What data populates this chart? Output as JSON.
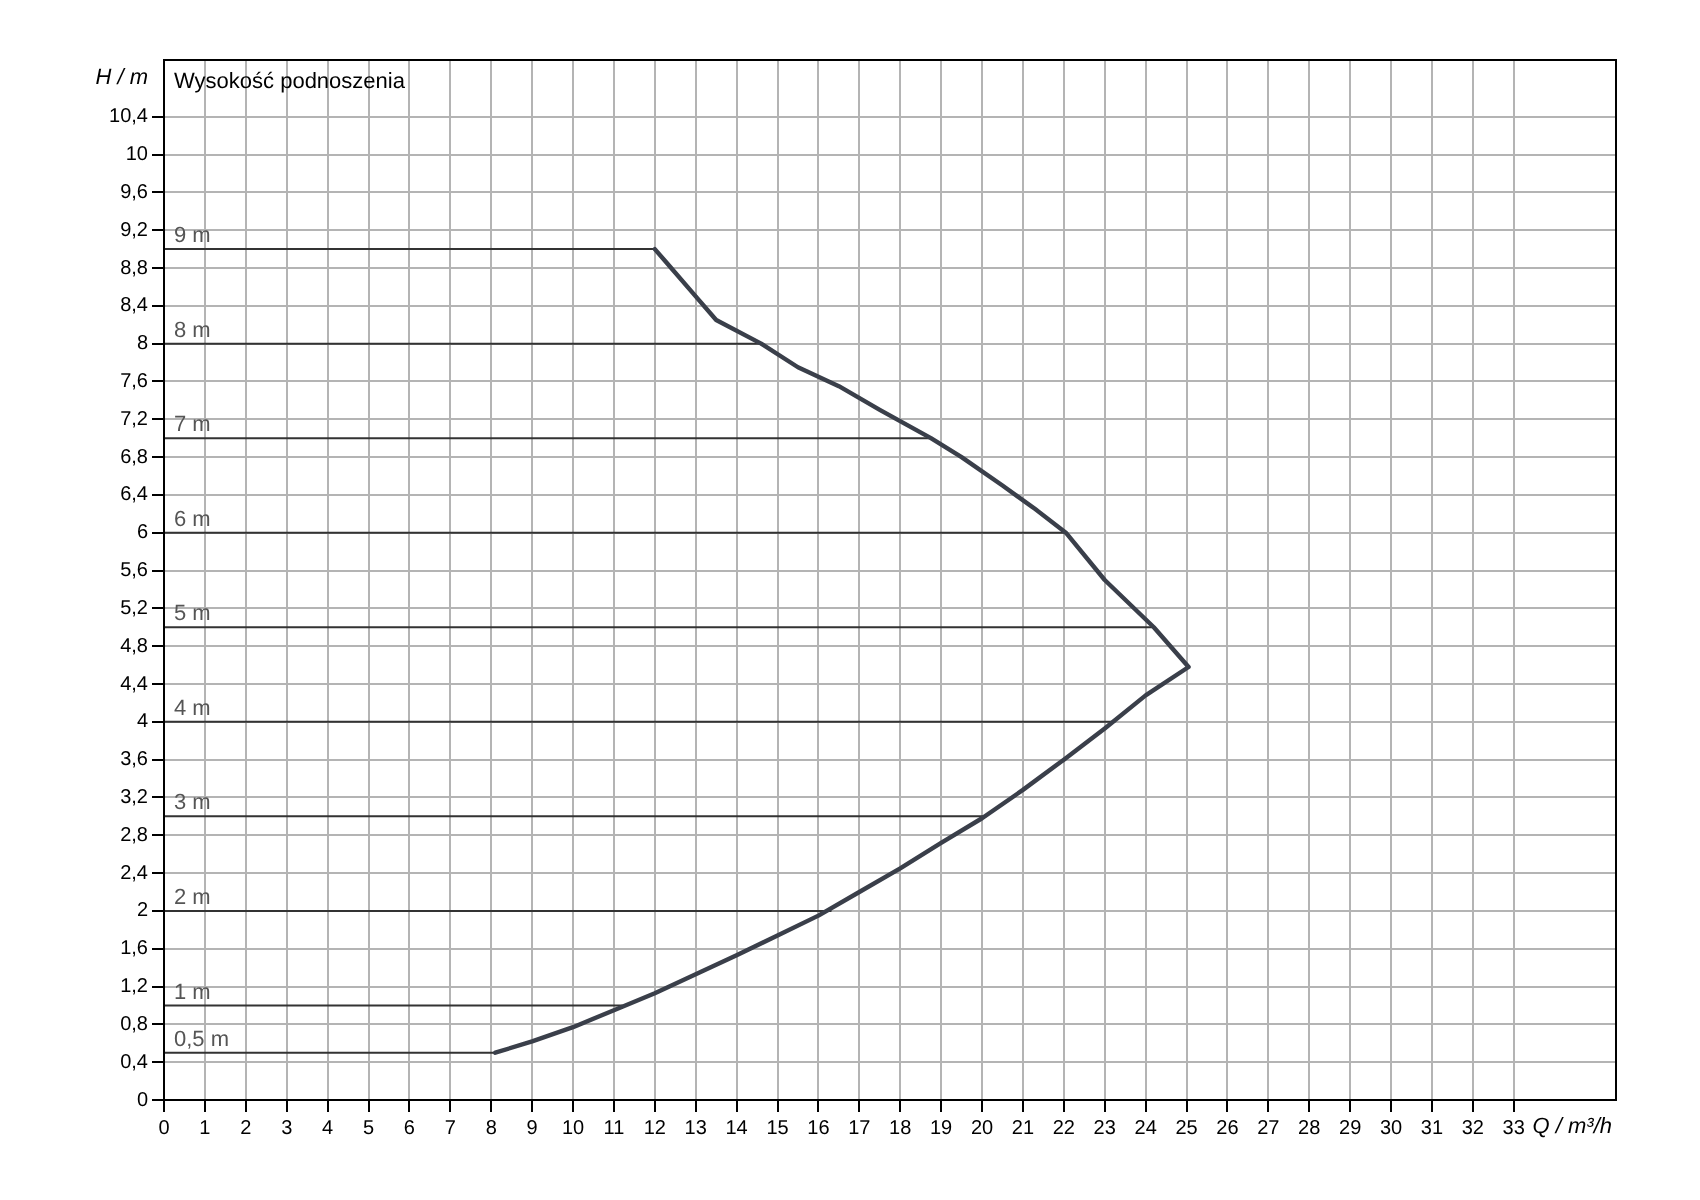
{
  "chart_data": {
    "type": "line",
    "title": "Wysokość podnoszenia",
    "xlabel": "Q / m³/h",
    "ylabel": "H / m",
    "xlim": [
      0,
      35.5
    ],
    "ylim": [
      0,
      11
    ],
    "xticks": [
      0,
      1,
      2,
      3,
      4,
      5,
      6,
      7,
      8,
      9,
      10,
      11,
      12,
      13,
      14,
      15,
      16,
      17,
      18,
      19,
      20,
      21,
      22,
      23,
      24,
      25,
      26,
      27,
      28,
      29,
      30,
      31,
      32,
      33
    ],
    "yticks": [
      0,
      {
        "value": 0.4,
        "label": "0,4"
      },
      {
        "value": 0.8,
        "label": "0,8"
      },
      {
        "value": 1.2,
        "label": "1,2"
      },
      {
        "value": 1.6,
        "label": "1,6"
      },
      2,
      {
        "value": 2.4,
        "label": "2,4"
      },
      {
        "value": 2.8,
        "label": "2,8"
      },
      {
        "value": 3.2,
        "label": "3,2"
      },
      {
        "value": 3.6,
        "label": "3,6"
      },
      4,
      {
        "value": 4.4,
        "label": "4,4"
      },
      {
        "value": 4.8,
        "label": "4,8"
      },
      {
        "value": 5.2,
        "label": "5,2"
      },
      {
        "value": 5.6,
        "label": "5,6"
      },
      6,
      {
        "value": 6.4,
        "label": "6,4"
      },
      {
        "value": 6.8,
        "label": "6,8"
      },
      {
        "value": 7.2,
        "label": "7,2"
      },
      {
        "value": 7.6,
        "label": "7,6"
      },
      8,
      {
        "value": 8.4,
        "label": "8,4"
      },
      {
        "value": 8.8,
        "label": "8,8"
      },
      {
        "value": 9.2,
        "label": "9,2"
      },
      {
        "value": 9.6,
        "label": "9,6"
      },
      10,
      {
        "value": 10.4,
        "label": "10,4"
      }
    ],
    "grid": true,
    "legend": false,
    "marker": "none",
    "line_style": "solid",
    "series": [
      {
        "color": "#3a3f4a",
        "x": [
          12,
          12.3,
          13,
          13.5,
          14.6,
          15.5,
          16.5,
          17.5,
          18.75,
          19.5,
          20.5,
          21.3,
          22.05,
          23,
          24.2,
          25.05,
          24,
          23,
          22,
          21,
          20,
          19,
          18,
          17,
          16,
          15,
          14,
          13,
          12,
          11,
          10,
          9,
          8.1
        ],
        "values": [
          9,
          8.85,
          8.5,
          8.25,
          8,
          7.75,
          7.55,
          7.3,
          7,
          6.8,
          6.5,
          6.25,
          6,
          5.5,
          5,
          4.58,
          4.28,
          3.93,
          3.6,
          3.28,
          2.98,
          2.72,
          2.45,
          2.2,
          1.95,
          1.74,
          1.53,
          1.33,
          1.13,
          0.95,
          0.77,
          0.62,
          0.5
        ]
      },
      {
        "name": "9 m",
        "color": "#333333",
        "x": [
          0,
          12
        ],
        "values": [
          9,
          9
        ]
      },
      {
        "name": "8 m",
        "color": "#333333",
        "x": [
          0,
          14.6
        ],
        "values": [
          8,
          8
        ]
      },
      {
        "name": "7 m",
        "color": "#333333",
        "x": [
          0,
          18.75
        ],
        "values": [
          7,
          7
        ]
      },
      {
        "name": "6 m",
        "color": "#333333",
        "x": [
          0,
          22.05
        ],
        "values": [
          6,
          6
        ]
      },
      {
        "name": "5 m",
        "color": "#333333",
        "x": [
          0,
          24.2
        ],
        "values": [
          5,
          5
        ]
      },
      {
        "name": "4 m",
        "color": "#333333",
        "x": [
          0,
          23.24
        ],
        "values": [
          4,
          4
        ]
      },
      {
        "name": "3 m",
        "color": "#333333",
        "x": [
          0,
          20.1
        ],
        "values": [
          3,
          3
        ]
      },
      {
        "name": "2 m",
        "color": "#333333",
        "x": [
          0,
          16.3
        ],
        "values": [
          2,
          2
        ]
      },
      {
        "name": "1 m",
        "color": "#333333",
        "x": [
          0,
          11.2
        ],
        "values": [
          1,
          1
        ]
      },
      {
        "name": "0,5 m",
        "color": "#333333",
        "x": [
          0,
          8.1
        ],
        "values": [
          0.5,
          0.5
        ]
      }
    ]
  }
}
